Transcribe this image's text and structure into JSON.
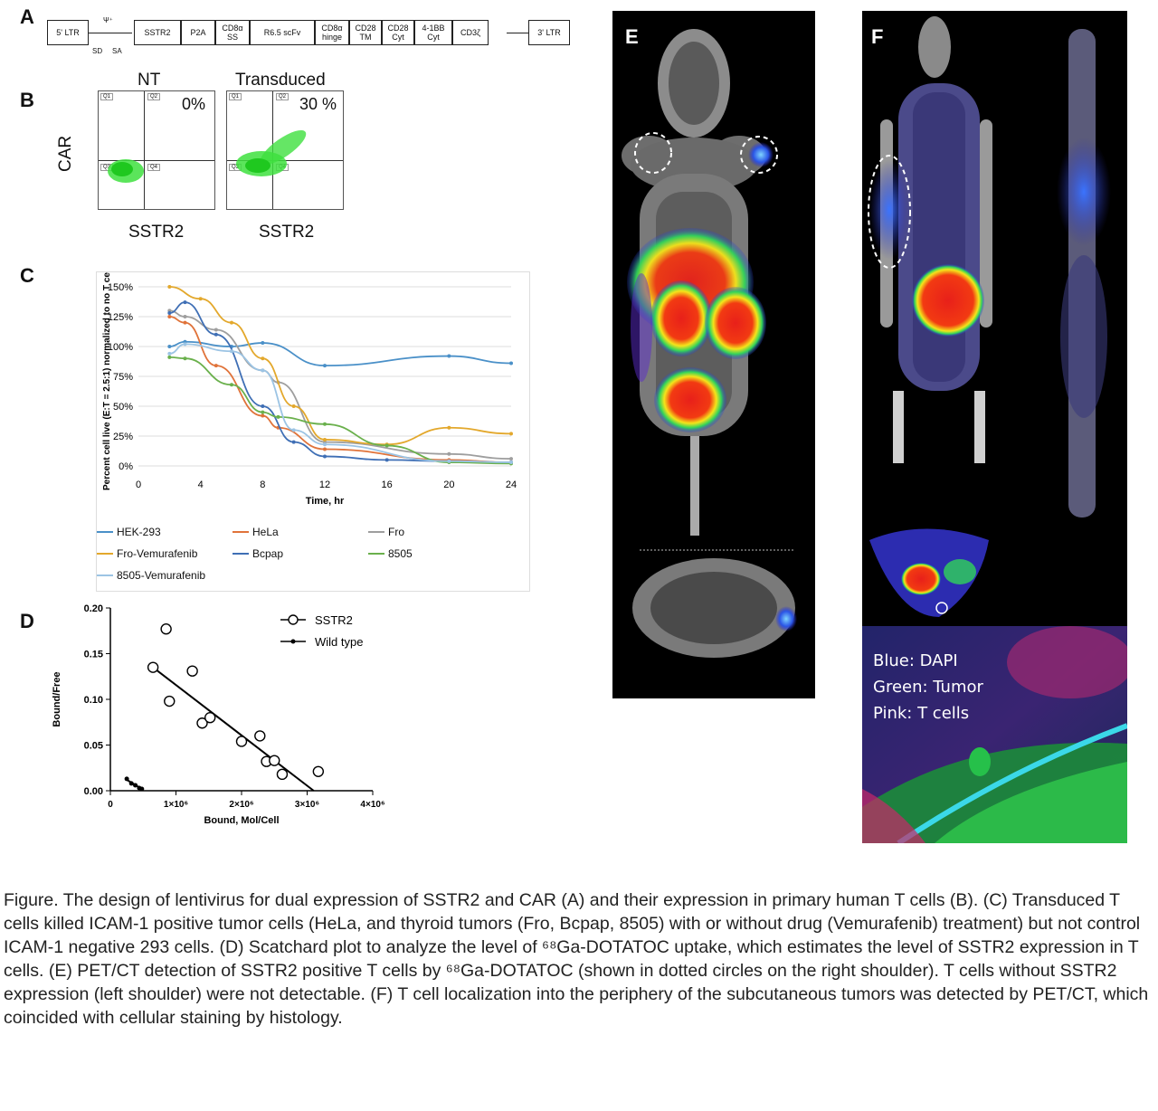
{
  "panel_labels": {
    "a": "A",
    "b": "B",
    "c": "C",
    "d": "D",
    "e": "E",
    "f": "F"
  },
  "panelA": {
    "ltr5": "5' LTR",
    "psi": "Ψ⁺",
    "sd": "SD",
    "sa": "SA",
    "blocks": [
      {
        "label": "SSTR2"
      },
      {
        "label": "P2A"
      },
      {
        "label": "CD8α SS"
      },
      {
        "label": "R6.5 scFv"
      },
      {
        "label": "CD8α hinge"
      },
      {
        "label": "CD28 TM"
      },
      {
        "label": "CD28 Cyt"
      },
      {
        "label": "4-1BB Cyt"
      },
      {
        "label": "CD3ζ"
      }
    ],
    "ltr3": "3' LTR"
  },
  "panelB": {
    "nt_title": "NT",
    "nt_pct": "0%",
    "tr_title": "Transduced",
    "tr_pct": "30 %",
    "ylabel": "CAR",
    "xlabel1": "SSTR2",
    "xlabel2": "SSTR2"
  },
  "chart_data": [
    {
      "type": "line",
      "ylabel": "Percent cell live (E:T = 2.5:1) normalized to no T cells",
      "xlabel": "Time, hr",
      "x_ticks": [
        "0",
        "4",
        "8",
        "12",
        "16",
        "20",
        "24"
      ],
      "y_ticks": [
        "0%",
        "25%",
        "50%",
        "75%",
        "100%",
        "125%",
        "150%"
      ],
      "xlim": [
        0,
        24
      ],
      "ylim": [
        0,
        150
      ],
      "grid": true,
      "legend_position": "bottom",
      "series": [
        {
          "name": "HEK-293",
          "color": "#4a90c8",
          "points": [
            [
              2,
              100
            ],
            [
              3,
              104
            ],
            [
              6,
              100
            ],
            [
              8,
              103
            ],
            [
              12,
              84
            ],
            [
              20,
              92
            ],
            [
              24,
              86
            ]
          ]
        },
        {
          "name": "HeLa",
          "color": "#e0733a",
          "points": [
            [
              2,
              125
            ],
            [
              3,
              120
            ],
            [
              5,
              84
            ],
            [
              8,
              42
            ],
            [
              9,
              32
            ],
            [
              12,
              14
            ],
            [
              20,
              5
            ],
            [
              24,
              3
            ]
          ]
        },
        {
          "name": "Fro",
          "color": "#9e9e9e",
          "points": [
            [
              2,
              130
            ],
            [
              3,
              125
            ],
            [
              5,
              114
            ],
            [
              8,
              80
            ],
            [
              9,
              70
            ],
            [
              12,
              20
            ],
            [
              20,
              10
            ],
            [
              24,
              6
            ]
          ]
        },
        {
          "name": "Fro-Vemurafenib",
          "color": "#e3a82c",
          "points": [
            [
              2,
              150
            ],
            [
              4,
              140
            ],
            [
              6,
              120
            ],
            [
              8,
              90
            ],
            [
              10,
              50
            ],
            [
              12,
              22
            ],
            [
              16,
              18
            ],
            [
              20,
              32
            ],
            [
              24,
              27
            ]
          ]
        },
        {
          "name": "Bcpap",
          "color": "#3f6fb5",
          "points": [
            [
              2,
              128
            ],
            [
              3,
              137
            ],
            [
              5,
              110
            ],
            [
              8,
              50
            ],
            [
              10,
              20
            ],
            [
              12,
              8
            ],
            [
              16,
              5
            ],
            [
              20,
              4
            ],
            [
              24,
              3
            ]
          ]
        },
        {
          "name": "8505",
          "color": "#6ab04c",
          "points": [
            [
              2,
              91
            ],
            [
              3,
              90
            ],
            [
              6,
              68
            ],
            [
              8,
              45
            ],
            [
              9,
              41
            ],
            [
              12,
              35
            ],
            [
              16,
              17
            ],
            [
              20,
              3
            ],
            [
              24,
              2
            ]
          ]
        },
        {
          "name": "8505-Vemurafenib",
          "color": "#9cc4e4",
          "points": [
            [
              2,
              94
            ],
            [
              3,
              102
            ],
            [
              6,
              96
            ],
            [
              8,
              80
            ],
            [
              10,
              30
            ],
            [
              12,
              18
            ],
            [
              20,
              4
            ],
            [
              24,
              3
            ]
          ]
        }
      ]
    },
    {
      "type": "scatter",
      "ylabel": "Bound/Free",
      "xlabel": "Bound, Mol/Cell",
      "x_ticks": [
        "0",
        "1×10⁶",
        "2×10⁶",
        "3×10⁶",
        "4×10⁶"
      ],
      "y_ticks": [
        "0.00",
        "0.05",
        "0.10",
        "0.15",
        "0.20"
      ],
      "xlim": [
        0,
        4000000
      ],
      "ylim": [
        0,
        0.2
      ],
      "legend_position": "top-right",
      "series": [
        {
          "name": "SSTR2",
          "marker": "open-circle",
          "points": [
            [
              650000,
              0.135
            ],
            [
              850000,
              0.177
            ],
            [
              900000,
              0.098
            ],
            [
              1250000,
              0.131
            ],
            [
              1400000,
              0.074
            ],
            [
              1520000,
              0.08
            ],
            [
              2000000,
              0.054
            ],
            [
              2280000,
              0.06
            ],
            [
              2380000,
              0.032
            ],
            [
              2500000,
              0.033
            ],
            [
              2620000,
              0.018
            ],
            [
              3170000,
              0.021
            ]
          ],
          "fit": [
            [
              650000,
              0.135
            ],
            [
              3100000,
              0.0
            ]
          ]
        },
        {
          "name": "Wild type",
          "marker": "filled-small",
          "points": [
            [
              250000,
              0.013
            ],
            [
              320000,
              0.008
            ],
            [
              380000,
              0.006
            ],
            [
              440000,
              0.003
            ],
            [
              480000,
              0.002
            ]
          ],
          "fit": [
            [
              250000,
              0.012
            ],
            [
              500000,
              0.001
            ]
          ]
        }
      ]
    }
  ],
  "histology": {
    "line1": "Blue: DAPI",
    "line2": "Green: Tumor",
    "line3": "Pink: T cells"
  },
  "caption": "Figure. The design of lentivirus for dual expression of SSTR2 and CAR (A) and their expression in primary human T cells (B). (C) Transduced T cells killed ICAM-1 positive tumor cells (HeLa, and thyroid tumors (Fro, Bcpap, 8505) with or without drug (Vemurafenib) treatment) but not control ICAM-1 negative 293 cells. (D) Scatchard plot to analyze the level of ⁶⁸Ga-DOTATOC uptake, which estimates the level of SSTR2 expression in T cells. (E) PET/CT detection of SSTR2 positive T cells by ⁶⁸Ga-DOTATOC (shown in dotted circles on the right shoulder). T cells without SSTR2 expression (left shoulder) were not detectable. (F) T cell localization into the periphery of the subcutaneous tumors was detected by PET/CT, which coincided with cellular staining by histology."
}
